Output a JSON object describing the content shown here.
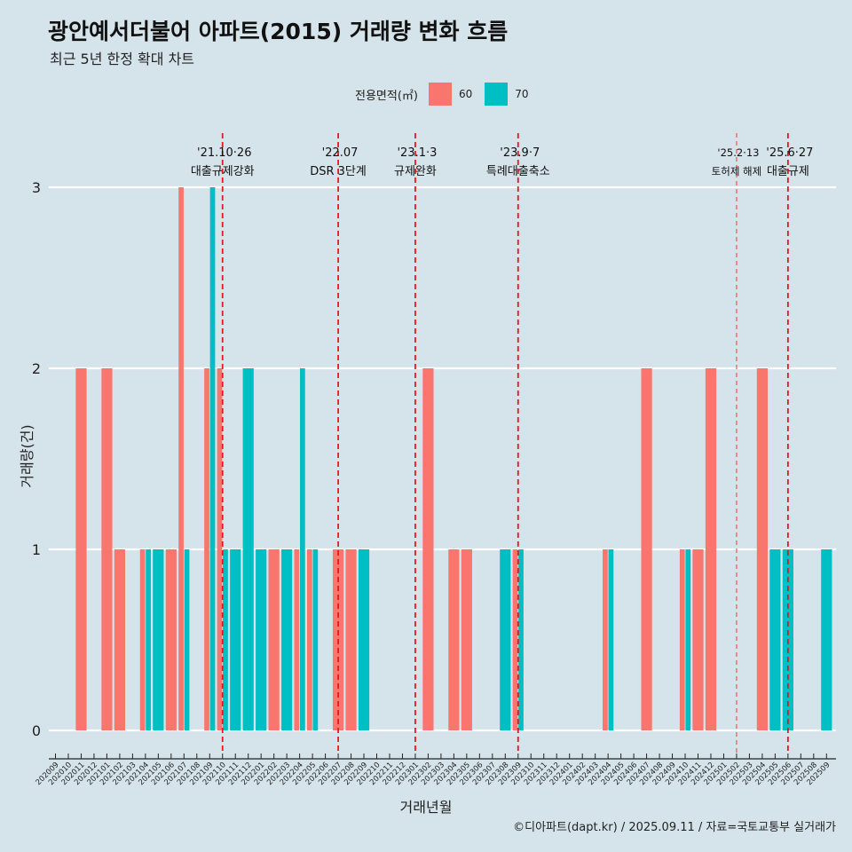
{
  "header": {
    "title": "광안예서더불어 아파트(2015) 거래량 변화 흐름",
    "subtitle": "최근 5년 한정 확대 차트"
  },
  "caption": "©디아파트(dapt.kr) / 2025.09.11 / 자료=국토교통부 실거래가",
  "legend": {
    "title": "전용면적(㎡)",
    "items": [
      {
        "label": "60",
        "color": "#f8766d"
      },
      {
        "label": "70",
        "color": "#00bfc4"
      }
    ]
  },
  "chart_data": {
    "type": "bar",
    "title": "광안예서더불어 아파트(2015) 거래량 변화 흐름",
    "subtitle": "최근 5년 한정 확대 차트",
    "xlabel": "거래년월",
    "ylabel": "거래량(건)",
    "ylim": [
      0,
      3
    ],
    "yticks": [
      0,
      1,
      2,
      3
    ],
    "grid": "horizontal",
    "legend_position": "top",
    "categories": [
      "202009",
      "202010",
      "202011",
      "202012",
      "202101",
      "202102",
      "202103",
      "202104",
      "202105",
      "202106",
      "202107",
      "202108",
      "202109",
      "202110",
      "202111",
      "202112",
      "202201",
      "202202",
      "202203",
      "202204",
      "202205",
      "202206",
      "202207",
      "202208",
      "202209",
      "202210",
      "202211",
      "202212",
      "202301",
      "202302",
      "202303",
      "202304",
      "202305",
      "202306",
      "202307",
      "202308",
      "202309",
      "202310",
      "202311",
      "202312",
      "202401",
      "202402",
      "202403",
      "202404",
      "202405",
      "202406",
      "202407",
      "202408",
      "202409",
      "202410",
      "202411",
      "202412",
      "202501",
      "202502",
      "202503",
      "202504",
      "202505",
      "202506",
      "202507",
      "202508",
      "202509"
    ],
    "bars": [
      {
        "month": "202011",
        "area": "60",
        "value": 2,
        "span": 1
      },
      {
        "month": "202101",
        "area": "60",
        "value": 2,
        "span": 1
      },
      {
        "month": "202102",
        "area": "60",
        "value": 1,
        "span": 1
      },
      {
        "month": "202104",
        "area": "60",
        "value": 1,
        "span": 2
      },
      {
        "month": "202104",
        "area": "70",
        "value": 1,
        "span": 2
      },
      {
        "month": "202105",
        "area": "70",
        "value": 1,
        "span": 1
      },
      {
        "month": "202106",
        "area": "60",
        "value": 1,
        "span": 1
      },
      {
        "month": "202107",
        "area": "60",
        "value": 3,
        "span": 2
      },
      {
        "month": "202107",
        "area": "70",
        "value": 1,
        "span": 2
      },
      {
        "month": "202109",
        "area": "60",
        "value": 2,
        "span": 2
      },
      {
        "month": "202109",
        "area": "70",
        "value": 3,
        "span": 2
      },
      {
        "month": "202110",
        "area": "60",
        "value": 2,
        "span": 2
      },
      {
        "month": "202110",
        "area": "70",
        "value": 1,
        "span": 2
      },
      {
        "month": "202111",
        "area": "70",
        "value": 1,
        "span": 1
      },
      {
        "month": "202112",
        "area": "70",
        "value": 2,
        "span": 1
      },
      {
        "month": "202201",
        "area": "70",
        "value": 1,
        "span": 1
      },
      {
        "month": "202202",
        "area": "60",
        "value": 1,
        "span": 1
      },
      {
        "month": "202203",
        "area": "70",
        "value": 1,
        "span": 1
      },
      {
        "month": "202204",
        "area": "60",
        "value": 1,
        "span": 2
      },
      {
        "month": "202204",
        "area": "70",
        "value": 2,
        "span": 2
      },
      {
        "month": "202205",
        "area": "60",
        "value": 1,
        "span": 2
      },
      {
        "month": "202205",
        "area": "70",
        "value": 1,
        "span": 2
      },
      {
        "month": "202207",
        "area": "60",
        "value": 1,
        "span": 1
      },
      {
        "month": "202208",
        "area": "60",
        "value": 1,
        "span": 1
      },
      {
        "month": "202209",
        "area": "70",
        "value": 1,
        "span": 1
      },
      {
        "month": "202302",
        "area": "60",
        "value": 2,
        "span": 1
      },
      {
        "month": "202304",
        "area": "60",
        "value": 1,
        "span": 1
      },
      {
        "month": "202305",
        "area": "60",
        "value": 1,
        "span": 1
      },
      {
        "month": "202308",
        "area": "70",
        "value": 1,
        "span": 1
      },
      {
        "month": "202309",
        "area": "60",
        "value": 1,
        "span": 2
      },
      {
        "month": "202309",
        "area": "70",
        "value": 1,
        "span": 2
      },
      {
        "month": "202404",
        "area": "60",
        "value": 1,
        "span": 2
      },
      {
        "month": "202404",
        "area": "70",
        "value": 1,
        "span": 2
      },
      {
        "month": "202407",
        "area": "60",
        "value": 2,
        "span": 1
      },
      {
        "month": "202410",
        "area": "60",
        "value": 1,
        "span": 2
      },
      {
        "month": "202410",
        "area": "70",
        "value": 1,
        "span": 2
      },
      {
        "month": "202411",
        "area": "60",
        "value": 1,
        "span": 1
      },
      {
        "month": "202412",
        "area": "60",
        "value": 2,
        "span": 1
      },
      {
        "month": "202504",
        "area": "60",
        "value": 2,
        "span": 1
      },
      {
        "month": "202505",
        "area": "70",
        "value": 1,
        "span": 1
      },
      {
        "month": "202506",
        "area": "70",
        "value": 1,
        "span": 1
      },
      {
        "month": "202509",
        "area": "70",
        "value": 1,
        "span": 1
      }
    ],
    "events": [
      {
        "month": "202110",
        "date": "'21.10·26",
        "label": "대출규제강화",
        "style": "strong"
      },
      {
        "month": "202207",
        "date": "'22.07",
        "label": "DSR 3단계",
        "style": "strong"
      },
      {
        "month": "202301",
        "date": "'23.1·3",
        "label": "규제완화",
        "style": "strong"
      },
      {
        "month": "202309",
        "date": "'23.9·7",
        "label": "특례대출축소",
        "style": "strong"
      },
      {
        "month": "202502",
        "date": "'25.2·13",
        "label": "토허제 해제",
        "style": "light"
      },
      {
        "month": "202506",
        "date": "'25.6·27",
        "label": "대출규제",
        "style": "strong"
      }
    ]
  }
}
